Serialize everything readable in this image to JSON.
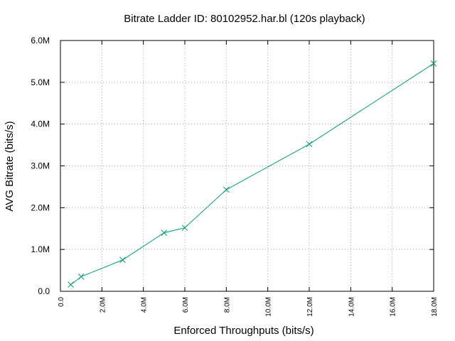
{
  "chart_data": {
    "type": "line",
    "title": "Bitrate Ladder ID: 80102952.har.bl (120s playback)",
    "xlabel": "Enforced Throughputs (bits/s)",
    "ylabel": "AVG Bitrate (bits/s)",
    "xlim": [
      0,
      18000000
    ],
    "ylim": [
      0,
      6000000
    ],
    "x_ticks": [
      0,
      2000000,
      4000000,
      6000000,
      8000000,
      10000000,
      12000000,
      14000000,
      16000000,
      18000000
    ],
    "x_tick_labels": [
      "0.0",
      "2.0M",
      "4.0M",
      "6.0M",
      "8.0M",
      "10.0M",
      "12.0M",
      "14.0M",
      "16.0M",
      "18.0M"
    ],
    "y_ticks": [
      0,
      1000000,
      2000000,
      3000000,
      4000000,
      5000000,
      6000000
    ],
    "y_tick_labels": [
      "0.0",
      "1.0M",
      "2.0M",
      "3.0M",
      "4.0M",
      "5.0M",
      "6.0M"
    ],
    "grid": true,
    "legend": "none",
    "series": [
      {
        "color": "#009e73",
        "marker": "x",
        "x": [
          500000,
          1000000,
          3000000,
          5000000,
          6000000,
          8000000,
          12000000,
          18000000
        ],
        "y": [
          160000,
          350000,
          750000,
          1400000,
          1520000,
          2430000,
          3520000,
          5450000
        ]
      }
    ]
  }
}
